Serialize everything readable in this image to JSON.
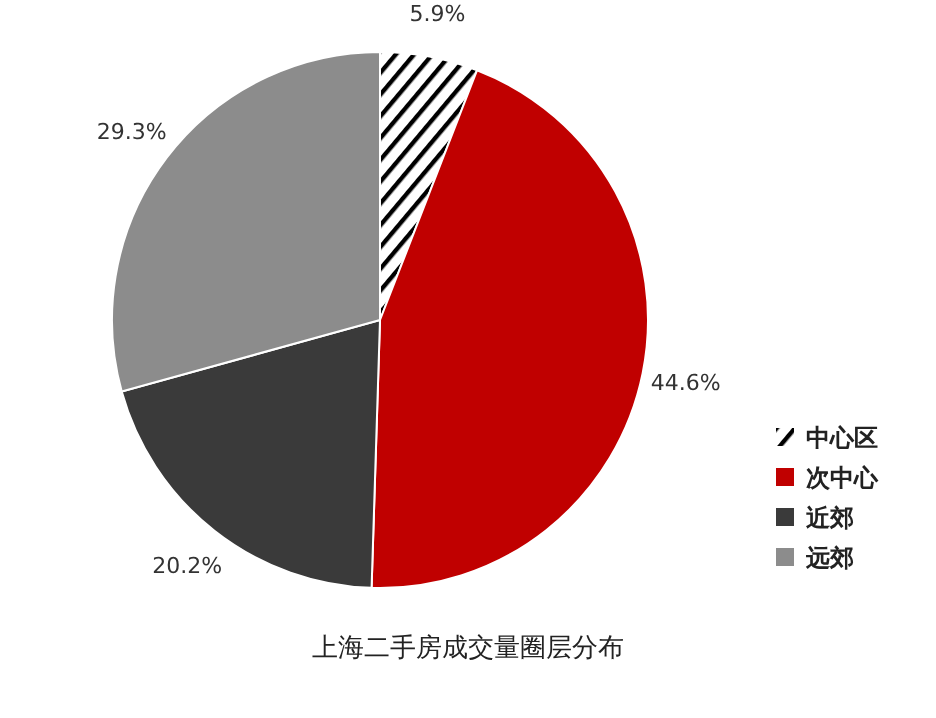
{
  "chart_data": {
    "type": "pie",
    "title": "上海二手房成交量圈层分布",
    "categories": [
      "中心区",
      "次中心",
      "近郊",
      "远郊"
    ],
    "values": [
      5.9,
      44.6,
      20.2,
      29.3
    ],
    "colors": [
      "#000000",
      "#c00000",
      "#3a3a3a",
      "#8c8c8c"
    ],
    "value_labels": [
      "5.9%",
      "44.6%",
      "20.2%",
      "29.3%"
    ],
    "legend": "right"
  }
}
